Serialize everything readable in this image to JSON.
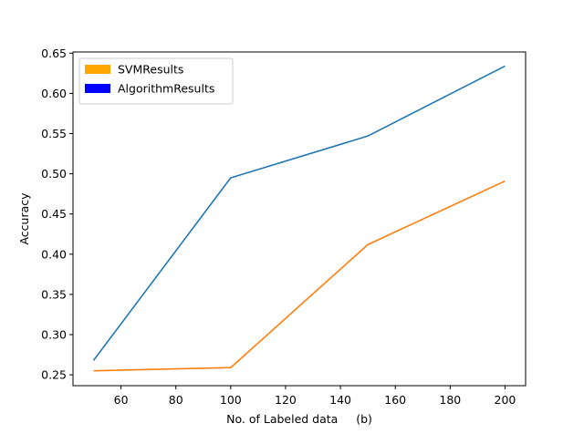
{
  "chart_data": {
    "type": "line",
    "title": "",
    "xlabel": "No. of Labeled data     (b)",
    "ylabel": "Accuracy",
    "xlim": [
      42.5,
      207.5
    ],
    "ylim": [
      0.2365,
      0.6515
    ],
    "xticks": [
      60,
      80,
      100,
      120,
      140,
      160,
      180,
      200
    ],
    "yticks": [
      0.25,
      0.3,
      0.35,
      0.4,
      0.45,
      0.5,
      0.55,
      0.6,
      0.65
    ],
    "x": [
      50,
      100,
      150,
      200
    ],
    "series": [
      {
        "name": "AlgorithmResults",
        "values": [
          0.268,
          0.495,
          0.547,
          0.634
        ],
        "color": "#1f77b4"
      },
      {
        "name": "SVMResults",
        "values": [
          0.255,
          0.259,
          0.412,
          0.491
        ],
        "color": "#ff7f0e"
      }
    ],
    "legend": {
      "placement": "top-left",
      "entries": [
        {
          "label": "SVMResults",
          "color": "#ffa500"
        },
        {
          "label": "AlgorithmResults",
          "color": "#0000ff"
        }
      ]
    },
    "grid": false
  }
}
